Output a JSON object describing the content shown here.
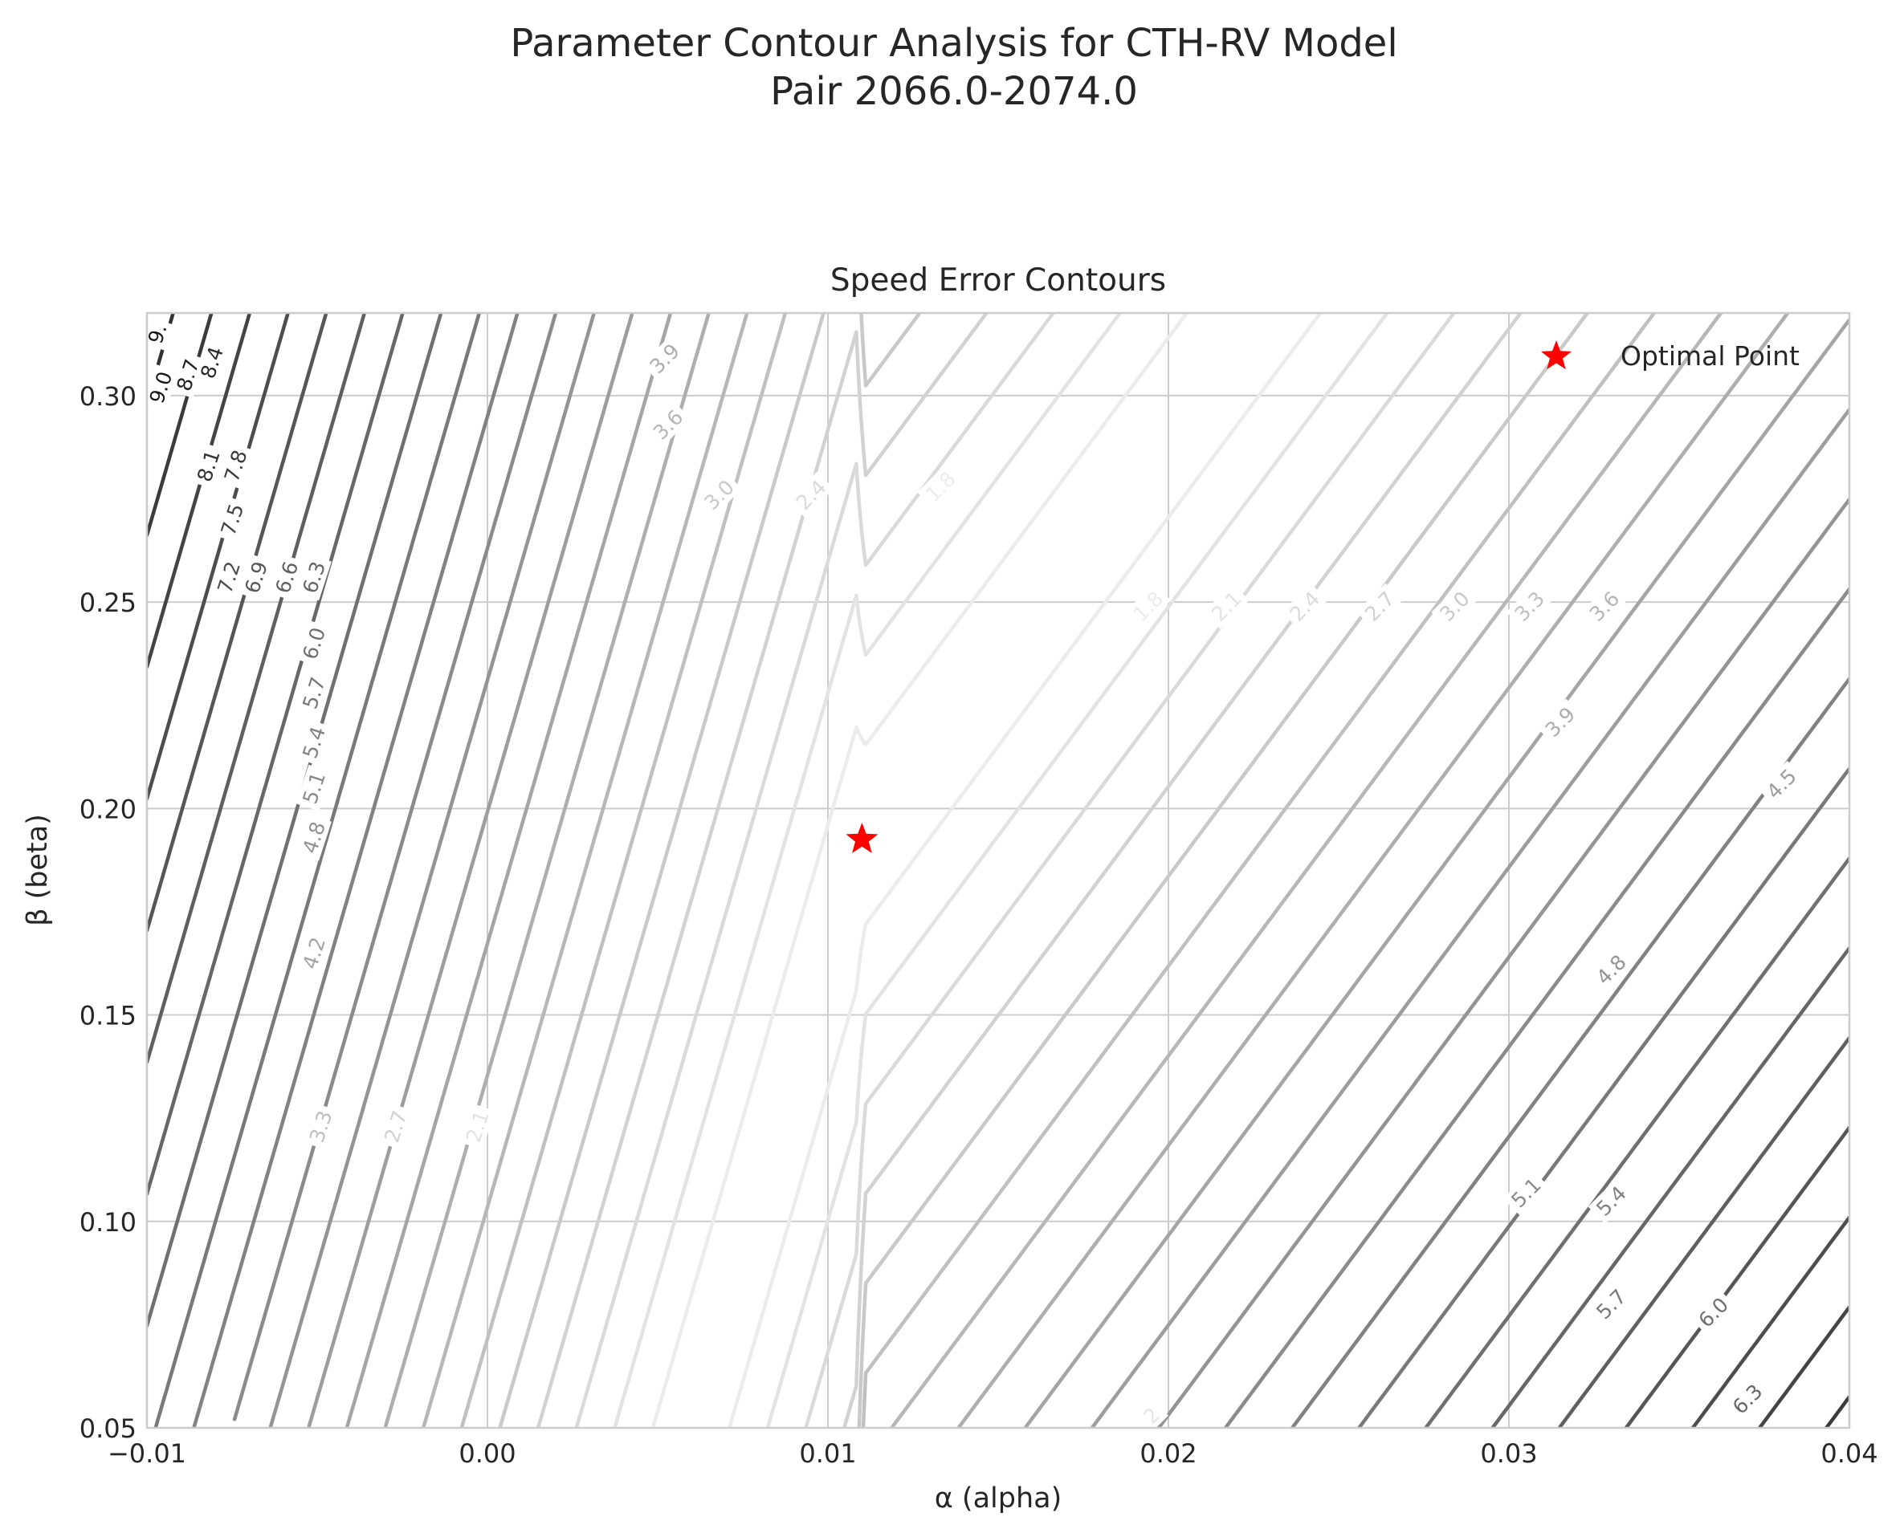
{
  "figure": {
    "suptitle_line1": "Parameter Contour Analysis for CTH-RV Model",
    "suptitle_line2": "Pair 2066.0-2074.0"
  },
  "chart_data": {
    "type": "contour",
    "title": "Speed Error Contours",
    "xlabel": "α (alpha)",
    "ylabel": "β (beta)",
    "xlim": [
      -0.01,
      0.04
    ],
    "ylim": [
      0.05,
      0.32
    ],
    "xticks": [
      "−0.01",
      "0.00",
      "0.01",
      "0.02",
      "0.03",
      "0.04"
    ],
    "xtick_values": [
      -0.01,
      0.0,
      0.01,
      0.02,
      0.03,
      0.04
    ],
    "yticks": [
      "0.05",
      "0.10",
      "0.15",
      "0.20",
      "0.25",
      "0.30"
    ],
    "ytick_values": [
      0.05,
      0.1,
      0.15,
      0.2,
      0.25,
      0.3
    ],
    "grid": true,
    "colormap": "greys",
    "level_min": 1.5,
    "level_max": 9.3,
    "level_step": 0.3,
    "contour_labels": [
      {
        "text": "9.",
        "x": -0.0097,
        "y": 0.315
      },
      {
        "text": "9.0",
        "x": -0.0096,
        "y": 0.302
      },
      {
        "text": "8.7",
        "x": -0.0088,
        "y": 0.305
      },
      {
        "text": "8.4",
        "x": -0.0081,
        "y": 0.308
      },
      {
        "text": "8.1",
        "x": -0.0082,
        "y": 0.283
      },
      {
        "text": "7.8",
        "x": -0.0074,
        "y": 0.283
      },
      {
        "text": "7.5",
        "x": -0.0075,
        "y": 0.27
      },
      {
        "text": "7.2",
        "x": -0.0076,
        "y": 0.256
      },
      {
        "text": "6.9",
        "x": -0.0068,
        "y": 0.256
      },
      {
        "text": "6.6",
        "x": -0.0059,
        "y": 0.256
      },
      {
        "text": "6.3",
        "x": -0.0051,
        "y": 0.256
      },
      {
        "text": "6.0",
        "x": -0.0051,
        "y": 0.24
      },
      {
        "text": "5.7",
        "x": -0.0051,
        "y": 0.228
      },
      {
        "text": "5.4",
        "x": -0.0051,
        "y": 0.216
      },
      {
        "text": "5.1",
        "x": -0.0051,
        "y": 0.205
      },
      {
        "text": "4.8",
        "x": -0.0051,
        "y": 0.193
      },
      {
        "text": "4.2",
        "x": -0.0051,
        "y": 0.165
      },
      {
        "text": "3.9",
        "x": 0.0052,
        "y": 0.309
      },
      {
        "text": "3.6",
        "x": 0.0053,
        "y": 0.293
      },
      {
        "text": "3.0",
        "x": 0.0068,
        "y": 0.276
      },
      {
        "text": "2.4",
        "x": 0.0095,
        "y": 0.276
      },
      {
        "text": "1.8",
        "x": 0.0133,
        "y": 0.278
      },
      {
        "text": "3.3",
        "x": -0.0049,
        "y": 0.123
      },
      {
        "text": "2.7",
        "x": -0.0027,
        "y": 0.123
      },
      {
        "text": "2.1",
        "x": -0.0003,
        "y": 0.123
      },
      {
        "text": "1.8",
        "x": 0.0194,
        "y": 0.249
      },
      {
        "text": "2.1",
        "x": 0.0217,
        "y": 0.249
      },
      {
        "text": "2.4",
        "x": 0.024,
        "y": 0.249
      },
      {
        "text": "2.7",
        "x": 0.0262,
        "y": 0.249
      },
      {
        "text": "3.0",
        "x": 0.0284,
        "y": 0.249
      },
      {
        "text": "3.3",
        "x": 0.0306,
        "y": 0.249
      },
      {
        "text": "3.6",
        "x": 0.0328,
        "y": 0.249
      },
      {
        "text": "3.9",
        "x": 0.0315,
        "y": 0.221
      },
      {
        "text": "4.5",
        "x": 0.038,
        "y": 0.206
      },
      {
        "text": "4.8",
        "x": 0.033,
        "y": 0.161
      },
      {
        "text": "5.1",
        "x": 0.0305,
        "y": 0.107
      },
      {
        "text": "5.4",
        "x": 0.033,
        "y": 0.105
      },
      {
        "text": "5.7",
        "x": 0.033,
        "y": 0.08
      },
      {
        "text": "6.0",
        "x": 0.036,
        "y": 0.078
      },
      {
        "text": "6.3",
        "x": 0.037,
        "y": 0.057
      },
      {
        "text": "2",
        "x": 0.0195,
        "y": 0.053
      }
    ],
    "series": [
      {
        "name": "Optimal Point",
        "type": "scatter",
        "marker": "star",
        "color": "#ff0000",
        "x": [
          0.011
        ],
        "y": [
          0.1925
        ]
      }
    ],
    "legend_position": "top-right"
  }
}
